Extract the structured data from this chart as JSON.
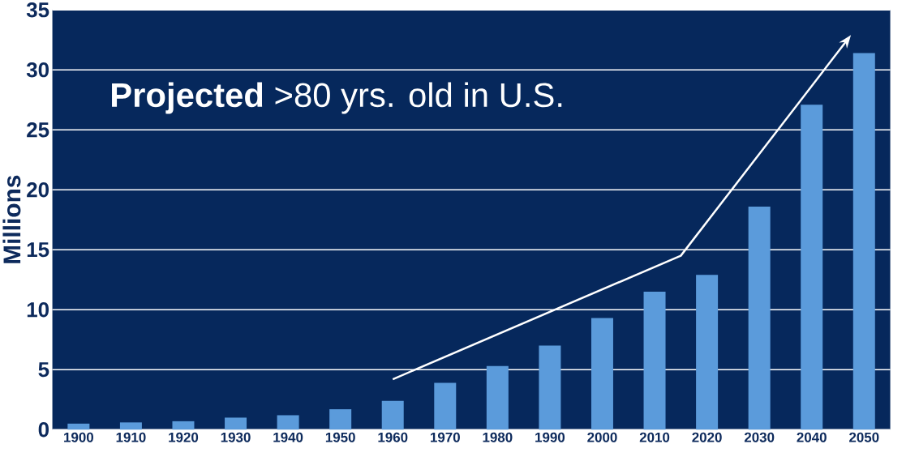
{
  "chart_data": {
    "type": "bar",
    "title": "**Projected** >80 yrs. old in U.S.",
    "ylabel": "Millions",
    "categories": [
      "1900",
      "1910",
      "1920",
      "1930",
      "1940",
      "1950",
      "1960",
      "1970",
      "1980",
      "1990",
      "2000",
      "2010",
      "2020",
      "2030",
      "2040",
      "2050"
    ],
    "values": [
      0.5,
      0.6,
      0.7,
      1.0,
      1.2,
      1.7,
      2.4,
      3.9,
      5.3,
      7.0,
      9.3,
      11.5,
      12.9,
      18.6,
      27.1,
      31.4
    ],
    "color": "#5b9bdb",
    "ylim": [
      0,
      35
    ],
    "yticks": [
      0,
      5,
      10,
      15,
      20,
      25,
      30,
      35
    ],
    "grid": "y"
  }
}
